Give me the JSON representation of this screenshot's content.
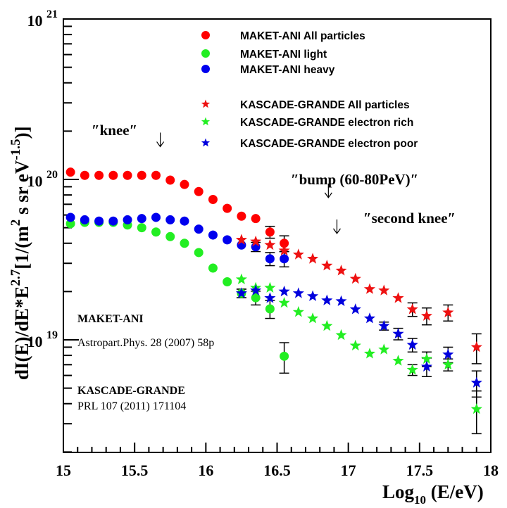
{
  "chart_data": {
    "type": "scatter",
    "title": "",
    "xlabel": "Log10 (E/eV)",
    "xlabel_main": "Log",
    "xlabel_sub": "10",
    "xlabel_rest": " (E/eV)",
    "ylabel": "dI(E)/dE*E^2.7 [1/(m^2 s sr eV^-1.5)]",
    "ylabel_parts": {
      "a": "dI(E)/dE*E",
      "a_sup": "2.7",
      "b": "[1/(m",
      "b_sup": "2",
      "c": " s sr eV",
      "c_sup": "-1.5",
      "d": ")]"
    },
    "xlim": [
      15,
      18
    ],
    "ylim": [
      2e+18,
      1e+21
    ],
    "yscale": "log",
    "grid": false,
    "legend_position": "top-right",
    "x_ticks": [
      "15",
      "15.5",
      "16",
      "16.5",
      "17",
      "17.5",
      "18"
    ],
    "x_tick_values": [
      15,
      15.5,
      16,
      16.5,
      17,
      17.5,
      18
    ],
    "y_ticks": [
      {
        "value": 1e+21,
        "base": "10",
        "exp": "21"
      },
      {
        "value": 1e+20,
        "base": "10",
        "exp": "20"
      },
      {
        "value": 1e+19,
        "base": "10",
        "exp": "19"
      }
    ],
    "series": [
      {
        "name": "MAKET-ANI  All particles",
        "marker": "circle",
        "color": "#ff0000",
        "x": [
          15.05,
          15.15,
          15.25,
          15.35,
          15.45,
          15.55,
          15.65,
          15.75,
          15.85,
          15.95,
          16.05,
          16.15,
          16.25,
          16.35,
          16.45,
          16.55
        ],
        "y": [
          1.11e+20,
          1.06e+20,
          1.06e+20,
          1.06e+20,
          1.06e+20,
          1.06e+20,
          1.06e+20,
          9.9e+19,
          9.3e+19,
          8.4e+19,
          7.5e+19,
          6.6e+19,
          5.9e+19,
          5.7e+19,
          4.7e+19,
          4e+19
        ],
        "yerr": [
          0,
          0,
          0,
          0,
          0,
          0,
          0,
          0,
          0,
          0,
          0,
          0,
          0,
          0,
          4e+18,
          4.5e+18
        ]
      },
      {
        "name": "MAKET-ANI  light",
        "marker": "circle",
        "color": "#22ee22",
        "x": [
          15.05,
          15.15,
          15.25,
          15.35,
          15.45,
          15.55,
          15.65,
          15.75,
          15.85,
          15.95,
          16.05,
          16.15,
          16.25,
          16.35,
          16.45,
          16.55
        ],
        "y": [
          5.3e+19,
          5.4e+19,
          5.4e+19,
          5.4e+19,
          5.2e+19,
          5e+19,
          4.7e+19,
          4.4e+19,
          4e+19,
          3.5e+19,
          2.8e+19,
          2.3e+19,
          1.95e+19,
          1.83e+19,
          1.56e+19,
          7.9e+18
        ],
        "yerr": [
          0,
          0,
          0,
          0,
          0,
          0,
          0,
          0,
          0,
          0,
          0,
          0,
          1.2e+18,
          1.8e+18,
          2e+18,
          1.7e+18
        ]
      },
      {
        "name": "MAKET-ANI  heavy",
        "marker": "circle",
        "color": "#0000ee",
        "x": [
          15.05,
          15.15,
          15.25,
          15.35,
          15.45,
          15.55,
          15.65,
          15.75,
          15.85,
          15.95,
          16.05,
          16.15,
          16.25,
          16.35,
          16.45,
          16.55
        ],
        "y": [
          5.8e+19,
          5.6e+19,
          5.5e+19,
          5.5e+19,
          5.6e+19,
          5.7e+19,
          5.8e+19,
          5.6e+19,
          5.5e+19,
          4.9e+19,
          4.5e+19,
          4.2e+19,
          3.9e+19,
          3.8e+19,
          3.2e+19,
          3.2e+19
        ],
        "yerr": [
          0,
          0,
          0,
          0,
          0,
          0,
          0,
          0,
          0,
          0,
          0,
          0,
          0,
          2.5e+18,
          3e+18,
          3.5e+18
        ]
      },
      {
        "name": "KASCADE-GRANDE All particles",
        "marker": "star",
        "color": "#ee1111",
        "x": [
          16.25,
          16.35,
          16.45,
          16.55,
          16.65,
          16.75,
          16.85,
          16.95,
          17.05,
          17.15,
          17.25,
          17.35,
          17.45,
          17.55,
          17.7,
          17.9
        ],
        "y": [
          4.2e+19,
          4.1e+19,
          3.9e+19,
          3.6e+19,
          3.4e+19,
          3.2e+19,
          2.9e+19,
          2.7e+19,
          2.4e+19,
          2.07e+19,
          2.03e+19,
          1.82e+19,
          1.55e+19,
          1.41e+19,
          1.48e+19,
          9e+18
        ],
        "yerr": [
          0,
          0,
          0,
          0,
          0,
          0,
          0,
          0,
          0,
          0,
          0,
          0,
          1.5e+18,
          1.7e+18,
          1.7e+18,
          1.9e+18
        ]
      },
      {
        "name": "KASCADE-GRANDE electron rich",
        "marker": "star",
        "color": "#22ee22",
        "x": [
          16.25,
          16.35,
          16.45,
          16.55,
          16.65,
          16.75,
          16.85,
          16.95,
          17.05,
          17.15,
          17.25,
          17.35,
          17.45,
          17.55,
          17.7,
          17.9
        ],
        "y": [
          2.38e+19,
          2.11e+19,
          2.11e+19,
          1.7e+19,
          1.49e+19,
          1.36e+19,
          1.22e+19,
          1.07e+19,
          9.2e+18,
          8.2e+18,
          8.7e+18,
          7.4e+18,
          6.5e+18,
          7.6e+18,
          7e+18,
          3.7e+18
        ],
        "yerr": [
          0,
          0,
          0,
          0,
          0,
          0,
          0,
          0,
          0,
          0,
          0,
          0,
          5e+17,
          8e+17,
          6e+17,
          1.1e+18
        ]
      },
      {
        "name": "KASCADE-GRANDE electron poor",
        "marker": "star",
        "color": "#0000dd",
        "x": [
          16.25,
          16.35,
          16.45,
          16.55,
          16.65,
          16.75,
          16.85,
          16.95,
          17.05,
          17.15,
          17.25,
          17.35,
          17.45,
          17.55,
          17.7,
          17.9
        ],
        "y": [
          1.95e+19,
          2.03e+19,
          1.82e+19,
          2e+19,
          1.95e+19,
          1.87e+19,
          1.76e+19,
          1.74e+19,
          1.55e+19,
          1.36e+19,
          1.22e+19,
          1.09e+19,
          9.3e+18,
          6.8e+18,
          8.1e+18,
          5.4e+18
        ],
        "yerr": [
          1.2e+18,
          0,
          0,
          0,
          0,
          0,
          0,
          0,
          0,
          0,
          7e+17,
          9e+17,
          9e+17,
          9e+17,
          9e+17,
          1e+18
        ]
      }
    ],
    "annotations": [
      {
        "text": "″knee″",
        "arrow_x": 15.68,
        "arrow_y": 1.6e+20
      },
      {
        "text": "″bump (60-80PeV)″",
        "arrow_x": 16.86,
        "arrow_y": 7.7e+19
      },
      {
        "text": "″second knee″",
        "arrow_x": 16.92,
        "arrow_y": 4.6e+19
      }
    ],
    "references": {
      "maket_name": "MAKET-ANI",
      "maket_ref": "Astropart.Phys. 28 (2007) 58p",
      "kg_name": "KASCADE-GRANDE",
      "kg_ref": "PRL 107 (2011) 171104"
    }
  }
}
